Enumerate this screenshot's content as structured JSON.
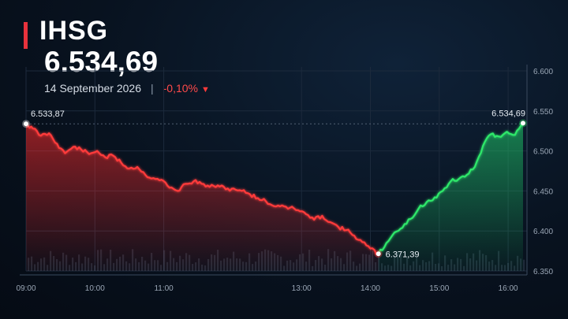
{
  "header": {
    "ticker": "IHSG",
    "price": "6.534,69",
    "date": "14 September 2026",
    "separator": "|",
    "change": "-0,10%",
    "change_arrow": "▼"
  },
  "colors": {
    "down": "#ff3b3b",
    "up": "#2ee86a",
    "accent": "#e8323c",
    "grid": "#1c2a3c",
    "axis_text": "#9aa6b5"
  },
  "chart_data": {
    "type": "line",
    "xlabel": "",
    "ylabel": "",
    "x_ticks": [
      "09:00",
      "10:00",
      "11:00",
      "13:00",
      "14:00",
      "15:00",
      "16:00"
    ],
    "y_ticks": [
      "6.600",
      "6.550",
      "6.500",
      "6.450",
      "6.400",
      "6.350"
    ],
    "ylim": [
      6350,
      6600
    ],
    "reference_line": 6533.87,
    "series": [
      {
        "segment": "decline",
        "points": [
          [
            "09:00",
            6533.87
          ],
          [
            "09:06",
            6528
          ],
          [
            "09:13",
            6519
          ],
          [
            "09:20",
            6522
          ],
          [
            "09:27",
            6509
          ],
          [
            "09:34",
            6497
          ],
          [
            "09:41",
            6505
          ],
          [
            "09:48",
            6502
          ],
          [
            "09:55",
            6496
          ],
          [
            "10:02",
            6500
          ],
          [
            "10:09",
            6492
          ],
          [
            "10:16",
            6494
          ],
          [
            "10:23",
            6485
          ],
          [
            "10:30",
            6478
          ],
          [
            "10:37",
            6480
          ],
          [
            "10:44",
            6470
          ],
          [
            "10:51",
            6466
          ],
          [
            "10:58",
            6464
          ],
          [
            "11:05",
            6454
          ],
          [
            "11:12",
            6450
          ],
          [
            "11:19",
            6459
          ],
          [
            "11:26",
            6462
          ],
          [
            "11:33",
            6459
          ],
          [
            "11:40",
            6455
          ],
          [
            "11:47",
            6457
          ],
          [
            "11:54",
            6452
          ],
          [
            "12:01",
            6453
          ],
          [
            "12:08",
            6450
          ],
          [
            "12:15",
            6446
          ],
          [
            "12:22",
            6441
          ],
          [
            "12:29",
            6437
          ],
          [
            "12:36",
            6431
          ],
          [
            "12:43",
            6432
          ],
          [
            "12:50",
            6429
          ],
          [
            "12:57",
            6426
          ],
          [
            "13:04",
            6421
          ],
          [
            "13:11",
            6414
          ],
          [
            "13:18",
            6419
          ],
          [
            "13:25",
            6411
          ],
          [
            "13:32",
            6405
          ],
          [
            "13:39",
            6401
          ],
          [
            "13:46",
            6394
          ],
          [
            "13:53",
            6386
          ],
          [
            "14:00",
            6378
          ],
          [
            "14:07",
            6371.39
          ]
        ]
      },
      {
        "segment": "recovery",
        "points": [
          [
            "14:07",
            6371.39
          ],
          [
            "14:14",
            6385
          ],
          [
            "14:21",
            6398
          ],
          [
            "14:28",
            6404
          ],
          [
            "14:35",
            6415
          ],
          [
            "14:42",
            6428
          ],
          [
            "14:49",
            6436
          ],
          [
            "14:56",
            6442
          ],
          [
            "15:03",
            6450
          ],
          [
            "15:10",
            6462
          ],
          [
            "15:17",
            6465
          ],
          [
            "15:24",
            6470
          ],
          [
            "15:31",
            6480
          ],
          [
            "15:38",
            6506
          ],
          [
            "15:45",
            6521
          ],
          [
            "15:52",
            6518
          ],
          [
            "15:59",
            6524
          ],
          [
            "16:06",
            6520
          ],
          [
            "16:13",
            6534.69
          ]
        ]
      }
    ],
    "annotations": [
      {
        "label": "6.533,87",
        "time": "09:00",
        "value": 6533.87
      },
      {
        "label": "6.371,39",
        "time": "14:07",
        "value": 6371.39
      },
      {
        "label": "6.534,69",
        "time": "16:13",
        "value": 6534.69
      }
    ],
    "volume_bars": true,
    "grid": true
  }
}
